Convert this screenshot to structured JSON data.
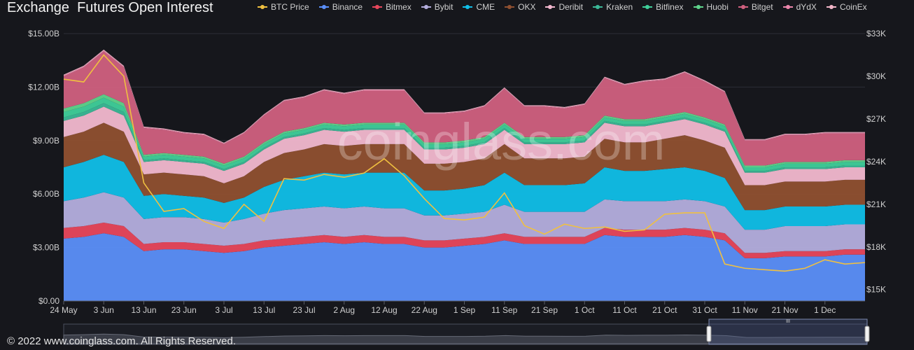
{
  "title": "Exchange  Futures Open Interest",
  "watermark": "coinglass.com",
  "footer": "© 2022 www.coinglass.com. All Rights Reserved.",
  "navigator_handle": "III",
  "chart_data": {
    "type": "area",
    "stacked": true,
    "title": "Exchange  Futures Open Interest",
    "x_ticks": [
      "24 May",
      "3 Jun",
      "13 Jun",
      "23 Jun",
      "3 Jul",
      "13 Jul",
      "23 Jul",
      "2 Aug",
      "12 Aug",
      "22 Aug",
      "1 Sep",
      "11 Sep",
      "21 Sep",
      "1 Oct",
      "11 Oct",
      "21 Oct",
      "31 Oct",
      "11 Nov",
      "21 Nov",
      "1 Dec"
    ],
    "y_left": {
      "ticks": [
        "$0.00",
        "$3.00B",
        "$6.00B",
        "$9.00B",
        "$12.00B",
        "$15.00B"
      ],
      "range_billions": [
        0,
        15
      ]
    },
    "y_right": {
      "ticks": [
        "$15K",
        "$18K",
        "$21K",
        "$24K",
        "$27K",
        "$30K",
        "$33K"
      ],
      "range": [
        14200,
        33000
      ]
    },
    "grid": true,
    "legend_position": "top",
    "x": [
      "24 May",
      "29 May",
      "3 Jun",
      "8 Jun",
      "13 Jun",
      "18 Jun",
      "23 Jun",
      "28 Jun",
      "3 Jul",
      "8 Jul",
      "13 Jul",
      "18 Jul",
      "23 Jul",
      "28 Jul",
      "2 Aug",
      "7 Aug",
      "12 Aug",
      "17 Aug",
      "22 Aug",
      "27 Aug",
      "1 Sep",
      "6 Sep",
      "11 Sep",
      "16 Sep",
      "21 Sep",
      "26 Sep",
      "1 Oct",
      "6 Oct",
      "11 Oct",
      "16 Oct",
      "21 Oct",
      "26 Oct",
      "31 Oct",
      "5 Nov",
      "11 Nov",
      "16 Nov",
      "21 Nov",
      "26 Nov",
      "1 Dec",
      "6 Dec",
      "8 Dec"
    ],
    "series": [
      {
        "name": "Binance",
        "color": "#5b8ff9",
        "values": [
          3.5,
          3.6,
          3.8,
          3.6,
          2.8,
          2.9,
          2.9,
          2.8,
          2.7,
          2.8,
          3.0,
          3.1,
          3.2,
          3.3,
          3.2,
          3.3,
          3.2,
          3.2,
          3.0,
          3.0,
          3.1,
          3.2,
          3.4,
          3.2,
          3.2,
          3.2,
          3.2,
          3.7,
          3.6,
          3.6,
          3.6,
          3.7,
          3.6,
          3.4,
          2.4,
          2.4,
          2.5,
          2.5,
          2.5,
          2.6,
          2.6
        ]
      },
      {
        "name": "Bitmex",
        "color": "#e8475c",
        "values": [
          0.6,
          0.6,
          0.6,
          0.6,
          0.4,
          0.4,
          0.4,
          0.4,
          0.4,
          0.4,
          0.4,
          0.4,
          0.4,
          0.4,
          0.4,
          0.4,
          0.4,
          0.4,
          0.4,
          0.4,
          0.4,
          0.4,
          0.4,
          0.4,
          0.4,
          0.4,
          0.4,
          0.4,
          0.4,
          0.4,
          0.4,
          0.4,
          0.4,
          0.4,
          0.3,
          0.3,
          0.3,
          0.3,
          0.3,
          0.3,
          0.3
        ]
      },
      {
        "name": "Bybit",
        "color": "#b4aede",
        "values": [
          1.5,
          1.6,
          1.7,
          1.6,
          1.4,
          1.4,
          1.4,
          1.4,
          1.3,
          1.4,
          1.5,
          1.6,
          1.6,
          1.6,
          1.6,
          1.6,
          1.6,
          1.6,
          1.4,
          1.4,
          1.4,
          1.4,
          1.6,
          1.4,
          1.4,
          1.4,
          1.4,
          1.6,
          1.6,
          1.6,
          1.6,
          1.6,
          1.6,
          1.5,
          1.3,
          1.3,
          1.4,
          1.4,
          1.4,
          1.4,
          1.4
        ]
      },
      {
        "name": "CME",
        "color": "#10bfe8",
        "values": [
          1.9,
          2.0,
          2.1,
          2.0,
          1.3,
          1.3,
          1.2,
          1.2,
          1.1,
          1.2,
          1.5,
          1.7,
          1.8,
          1.9,
          1.9,
          1.9,
          2.0,
          2.0,
          1.4,
          1.4,
          1.4,
          1.5,
          1.8,
          1.5,
          1.5,
          1.5,
          1.6,
          1.8,
          1.7,
          1.7,
          1.8,
          1.8,
          1.7,
          1.6,
          1.1,
          1.1,
          1.1,
          1.1,
          1.1,
          1.1,
          1.1
        ]
      },
      {
        "name": "OKX",
        "color": "#8f5030",
        "values": [
          1.7,
          1.7,
          1.8,
          1.7,
          1.2,
          1.2,
          1.2,
          1.2,
          1.1,
          1.2,
          1.4,
          1.5,
          1.5,
          1.6,
          1.6,
          1.6,
          1.6,
          1.6,
          1.5,
          1.5,
          1.5,
          1.5,
          1.6,
          1.5,
          1.5,
          1.5,
          1.5,
          1.6,
          1.6,
          1.6,
          1.7,
          1.8,
          1.7,
          1.7,
          1.4,
          1.4,
          1.4,
          1.4,
          1.4,
          1.4,
          1.4
        ]
      },
      {
        "name": "Deribit",
        "color": "#f2b8cf",
        "values": [
          0.9,
          0.9,
          0.9,
          0.9,
          0.7,
          0.7,
          0.7,
          0.7,
          0.7,
          0.7,
          0.7,
          0.8,
          0.8,
          0.8,
          0.8,
          0.8,
          0.8,
          0.8,
          0.8,
          0.8,
          0.8,
          0.8,
          0.8,
          0.8,
          0.8,
          0.8,
          0.8,
          0.9,
          0.9,
          0.9,
          0.9,
          0.9,
          0.9,
          0.9,
          0.7,
          0.7,
          0.7,
          0.7,
          0.7,
          0.7,
          0.7
        ]
      },
      {
        "name": "Kraken",
        "color": "#3bb897",
        "values": [
          0.2,
          0.2,
          0.2,
          0.2,
          0.1,
          0.1,
          0.1,
          0.1,
          0.1,
          0.1,
          0.1,
          0.1,
          0.1,
          0.1,
          0.1,
          0.1,
          0.1,
          0.1,
          0.1,
          0.1,
          0.1,
          0.1,
          0.1,
          0.1,
          0.1,
          0.1,
          0.1,
          0.1,
          0.1,
          0.1,
          0.1,
          0.1,
          0.1,
          0.1,
          0.1,
          0.1,
          0.1,
          0.1,
          0.1,
          0.1,
          0.1
        ]
      },
      {
        "name": "Bitfinex",
        "color": "#3fcf9a",
        "values": [
          0.3,
          0.3,
          0.3,
          0.3,
          0.2,
          0.2,
          0.2,
          0.2,
          0.2,
          0.2,
          0.2,
          0.2,
          0.2,
          0.2,
          0.2,
          0.2,
          0.2,
          0.2,
          0.2,
          0.2,
          0.2,
          0.2,
          0.2,
          0.2,
          0.2,
          0.2,
          0.2,
          0.2,
          0.2,
          0.2,
          0.2,
          0.2,
          0.2,
          0.2,
          0.2,
          0.2,
          0.2,
          0.2,
          0.2,
          0.2,
          0.2
        ]
      },
      {
        "name": "Huobi",
        "color": "#5fd48c",
        "values": [
          0.2,
          0.2,
          0.2,
          0.2,
          0.1,
          0.1,
          0.1,
          0.1,
          0.1,
          0.1,
          0.1,
          0.1,
          0.1,
          0.1,
          0.1,
          0.1,
          0.1,
          0.1,
          0.1,
          0.1,
          0.1,
          0.1,
          0.1,
          0.1,
          0.1,
          0.1,
          0.1,
          0.1,
          0.1,
          0.1,
          0.1,
          0.1,
          0.1,
          0.1,
          0.1,
          0.1,
          0.1,
          0.1,
          0.1,
          0.1,
          0.1
        ]
      },
      {
        "name": "Bitget",
        "color": "#d0607f",
        "values": [
          1.8,
          2.0,
          2.4,
          2.0,
          1.5,
          1.3,
          1.2,
          1.2,
          1.1,
          1.3,
          1.5,
          1.7,
          1.7,
          1.8,
          1.7,
          1.8,
          1.8,
          1.8,
          1.6,
          1.6,
          1.6,
          1.7,
          1.9,
          1.7,
          1.7,
          1.6,
          1.7,
          2.1,
          1.9,
          2.1,
          2.0,
          2.2,
          2.0,
          1.8,
          1.4,
          1.4,
          1.5,
          1.5,
          1.6,
          1.5,
          1.5
        ]
      },
      {
        "name": "dYdX",
        "color": "#ec87ac",
        "values": [
          0.05,
          0.05,
          0.05,
          0.05,
          0.04,
          0.04,
          0.04,
          0.04,
          0.04,
          0.04,
          0.04,
          0.04,
          0.04,
          0.04,
          0.04,
          0.04,
          0.04,
          0.04,
          0.04,
          0.04,
          0.04,
          0.04,
          0.04,
          0.04,
          0.04,
          0.04,
          0.04,
          0.04,
          0.04,
          0.04,
          0.04,
          0.04,
          0.04,
          0.04,
          0.04,
          0.04,
          0.04,
          0.04,
          0.04,
          0.04,
          0.04
        ]
      },
      {
        "name": "CoinEx",
        "color": "#f3b6c8",
        "values": [
          0.05,
          0.05,
          0.05,
          0.05,
          0.04,
          0.04,
          0.04,
          0.04,
          0.04,
          0.04,
          0.04,
          0.04,
          0.04,
          0.04,
          0.04,
          0.04,
          0.04,
          0.04,
          0.04,
          0.04,
          0.04,
          0.04,
          0.04,
          0.04,
          0.04,
          0.04,
          0.04,
          0.04,
          0.04,
          0.04,
          0.04,
          0.04,
          0.04,
          0.04,
          0.04,
          0.04,
          0.04,
          0.04,
          0.04,
          0.04,
          0.04
        ]
      }
    ],
    "line_series": {
      "name": "BTC Price",
      "color": "#f0c040",
      "axis": "right",
      "values": [
        29800,
        29600,
        31500,
        30000,
        22500,
        20500,
        20700,
        19800,
        19300,
        21000,
        19800,
        22800,
        22700,
        23100,
        22900,
        23200,
        24200,
        23000,
        21400,
        20000,
        19900,
        20100,
        21800,
        19500,
        18900,
        19600,
        19300,
        19400,
        19100,
        19200,
        20300,
        20400,
        20400,
        16800,
        16500,
        16400,
        16300,
        16500,
        17100,
        16800,
        16900
      ]
    }
  }
}
